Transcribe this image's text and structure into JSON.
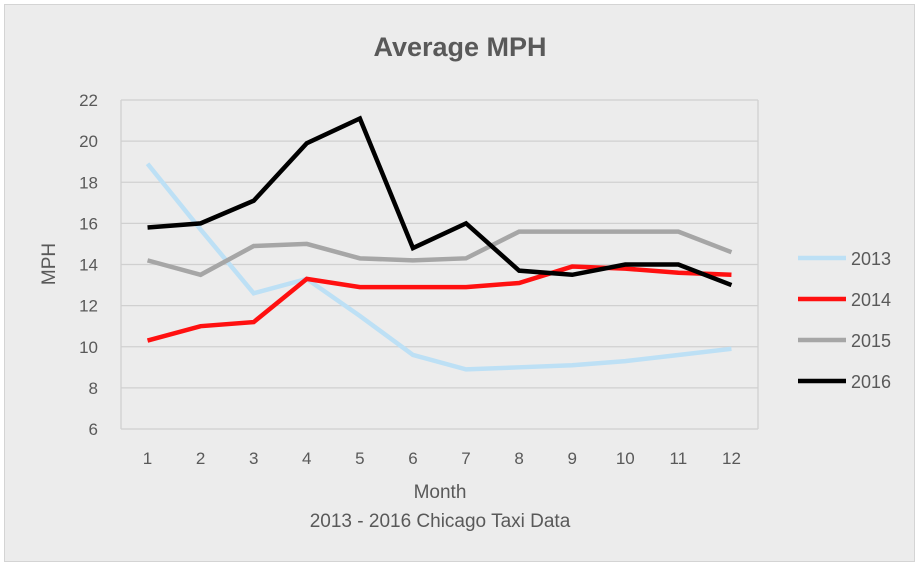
{
  "chart_data": {
    "type": "line",
    "title": "Average MPH",
    "xlabel": "Month",
    "ylabel": "MPH",
    "caption": "2013 - 2016 Chicago Taxi Data",
    "x": [
      1,
      2,
      3,
      4,
      5,
      6,
      7,
      8,
      9,
      10,
      11,
      12
    ],
    "ylim": [
      6,
      22
    ],
    "yticks": [
      6,
      8,
      10,
      12,
      14,
      16,
      18,
      20,
      22
    ],
    "grid": true,
    "legend_position": "right",
    "series": [
      {
        "name": "2013",
        "color": "#bde0f5",
        "values": [
          18.9,
          15.7,
          12.6,
          13.3,
          11.5,
          9.6,
          8.9,
          9.0,
          9.1,
          9.3,
          9.6,
          9.9
        ]
      },
      {
        "name": "2014",
        "color": "#ff1010",
        "values": [
          10.3,
          11.0,
          11.2,
          13.3,
          12.9,
          12.9,
          12.9,
          13.1,
          13.9,
          13.8,
          13.6,
          13.5
        ]
      },
      {
        "name": "2015",
        "color": "#a6a6a6",
        "values": [
          14.2,
          13.5,
          14.9,
          15.0,
          14.3,
          14.2,
          14.3,
          15.6,
          15.6,
          15.6,
          15.6,
          14.6
        ]
      },
      {
        "name": "2016",
        "color": "#000000",
        "values": [
          15.8,
          16.0,
          17.1,
          19.9,
          21.1,
          14.8,
          16.0,
          13.7,
          13.5,
          14.0,
          14.0,
          13.0
        ]
      }
    ]
  }
}
